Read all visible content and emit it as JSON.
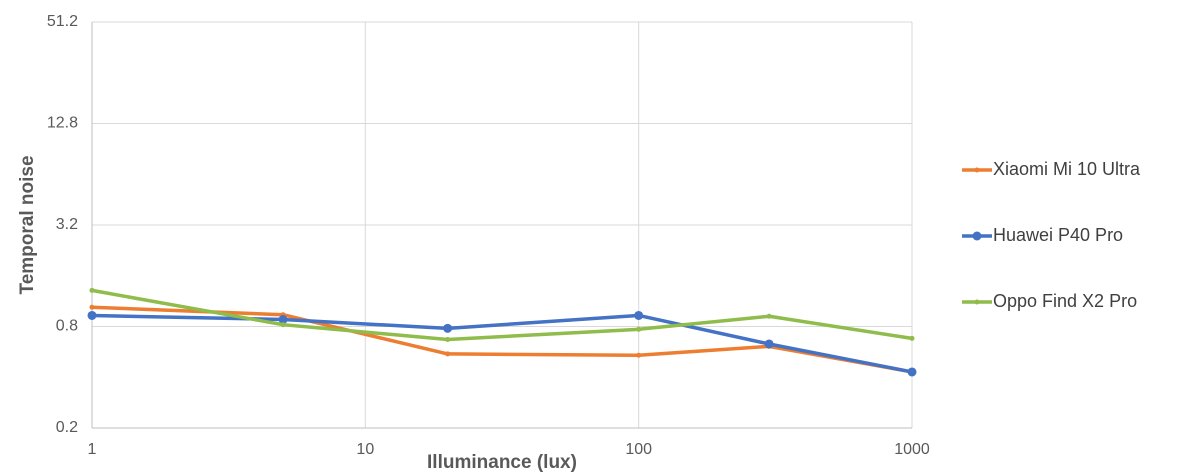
{
  "chart_data": {
    "type": "line",
    "x_label": "Illuminance (lux)",
    "y_label": "Temporal noise",
    "x": [
      1,
      5,
      20,
      100,
      300,
      1000
    ],
    "xscale": "log",
    "yscale": "log",
    "xlim": [
      1,
      1000
    ],
    "xticks": [
      1,
      10,
      100,
      1000
    ],
    "ylim": [
      0.2,
      51.2
    ],
    "yticks": [
      0.2,
      0.8,
      3.2,
      12.8,
      51.2
    ],
    "grid": true,
    "legend": "right",
    "series": [
      {
        "name": "Xiaomi Mi 10 Ultra",
        "color": "#ed7d31",
        "marker_size": 2.5,
        "values": [
          1.04,
          0.94,
          0.55,
          0.54,
          0.61,
          0.43
        ]
      },
      {
        "name": "Huawei P40 Pro",
        "color": "#4472c4",
        "marker_size": 4.5,
        "values": [
          0.93,
          0.88,
          0.78,
          0.93,
          0.63,
          0.43
        ]
      },
      {
        "name": "Oppo Find X2 Pro",
        "color": "#8fbc4a",
        "marker_size": 2.5,
        "values": [
          1.31,
          0.82,
          0.67,
          0.77,
          0.92,
          0.68
        ]
      }
    ]
  }
}
